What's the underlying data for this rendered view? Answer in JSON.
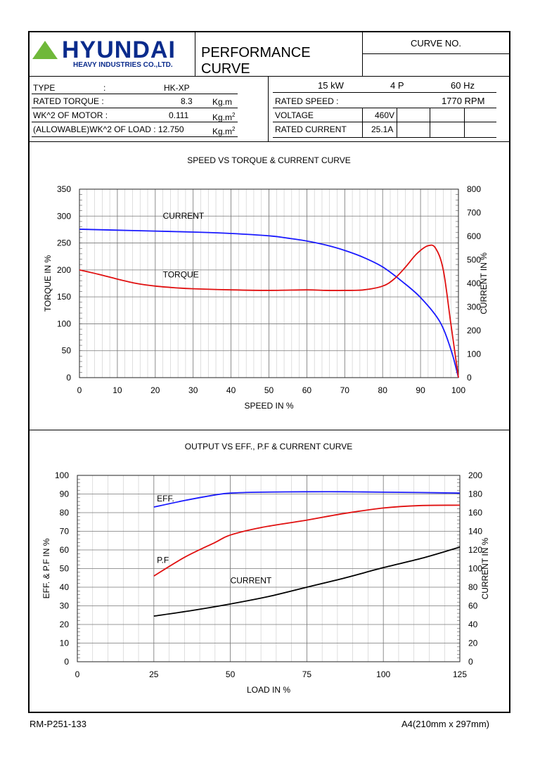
{
  "header": {
    "brand": "HYUNDAI",
    "brand_sub": "HEAVY INDUSTRIES CO.,LTD.",
    "title": "PERFORMANCE CURVE",
    "curve_no_label": "CURVE NO."
  },
  "specs": {
    "type_label": "TYPE",
    "type_colon": ":",
    "type_value": "HK-XP",
    "rated_torque_label": "RATED TORQUE :",
    "rated_torque_value": "8.3",
    "rated_torque_unit": "Kg.m",
    "wk2_motor_label": "WK^2 OF MOTOR :",
    "wk2_motor_value": "0.111",
    "wk2_motor_unit": "Kg.m",
    "wk2_load_label": "(ALLOWABLE)WK^2 OF LOAD : 12.750",
    "wk2_load_unit": "Kg.m",
    "power": "15",
    "power_unit": "kW",
    "poles": "4",
    "poles_unit": "P",
    "freq": "60",
    "freq_unit": "Hz",
    "rated_speed_label": "RATED SPEED :",
    "rated_speed_value": "1770",
    "rated_speed_unit": "RPM",
    "voltage_label": "VOLTAGE",
    "voltage_value": "460V",
    "rated_current_label": "RATED CURRENT",
    "rated_current_value": "25.1A",
    "superscript": "2"
  },
  "chart_data": [
    {
      "type": "line",
      "title": "SPEED VS TORQUE & CURRENT CURVE",
      "xlabel": "SPEED IN %",
      "ylabel": "TORQUE IN %",
      "y2label": "CURRENT IN %",
      "xlim": [
        0,
        100
      ],
      "ylim": [
        0,
        350
      ],
      "y2lim": [
        0,
        800
      ],
      "xticks": [
        0,
        10,
        20,
        30,
        40,
        50,
        60,
        70,
        80,
        90,
        100
      ],
      "yticks": [
        0,
        50,
        100,
        150,
        200,
        250,
        300,
        350
      ],
      "y2ticks": [
        0,
        100,
        200,
        300,
        400,
        500,
        600,
        700,
        800
      ],
      "series": [
        {
          "name": "CURRENT",
          "axis": "right",
          "color": "#1a1aff",
          "x": [
            0,
            10,
            20,
            30,
            40,
            50,
            55,
            60,
            65,
            70,
            75,
            80,
            85,
            90,
            95,
            98,
            100
          ],
          "y": [
            630,
            626,
            622,
            618,
            612,
            602,
            592,
            580,
            563,
            540,
            510,
            470,
            410,
            340,
            240,
            120,
            0
          ]
        },
        {
          "name": "TORQUE",
          "axis": "left",
          "color": "#e01010",
          "x": [
            0,
            5,
            10,
            15,
            20,
            25,
            30,
            40,
            50,
            60,
            65,
            70,
            75,
            80,
            83,
            86,
            89,
            92,
            94,
            96,
            98,
            100
          ],
          "y": [
            200,
            192,
            183,
            175,
            170,
            167,
            165,
            163,
            162,
            163,
            162,
            162,
            163,
            170,
            183,
            205,
            230,
            245,
            240,
            200,
            100,
            0
          ]
        }
      ]
    },
    {
      "type": "line",
      "title": "OUTPUT VS EFF., P.F & CURRENT CURVE",
      "xlabel": "LOAD IN %",
      "ylabel": "EFF. & P.F IN %",
      "y2label": "CURRENT IN %",
      "xlim": [
        0,
        125
      ],
      "ylim": [
        0,
        100
      ],
      "y2lim": [
        0,
        200
      ],
      "xticks": [
        0,
        25,
        50,
        75,
        100,
        125
      ],
      "yticks": [
        0,
        10,
        20,
        30,
        40,
        50,
        60,
        70,
        80,
        90,
        100
      ],
      "y2ticks": [
        0,
        20,
        40,
        60,
        80,
        100,
        120,
        140,
        160,
        180,
        200
      ],
      "series": [
        {
          "name": "EFF.",
          "axis": "left",
          "color": "#1a1aff",
          "x": [
            25,
            35,
            45,
            50,
            60,
            75,
            87,
            100,
            112,
            125
          ],
          "y": [
            83,
            86.5,
            89.5,
            90.5,
            91,
            91.2,
            91.2,
            91,
            90.8,
            90.5
          ]
        },
        {
          "name": "P.F",
          "axis": "left",
          "color": "#e01010",
          "x": [
            25,
            35,
            45,
            50,
            60,
            75,
            87,
            100,
            112,
            125
          ],
          "y": [
            46,
            56,
            64,
            68,
            72,
            76,
            79.5,
            82.5,
            83.8,
            84
          ]
        },
        {
          "name": "CURRENT",
          "axis": "right",
          "color": "#000000",
          "x": [
            25,
            37.5,
            50,
            62.5,
            75,
            87.5,
            100,
            112.5,
            125
          ],
          "y": [
            49,
            55,
            62,
            70,
            80,
            90,
            101,
            111,
            123
          ]
        }
      ]
    }
  ],
  "footer": {
    "left": "RM-P251-133",
    "right": "A4(210mm x 297mm)"
  }
}
